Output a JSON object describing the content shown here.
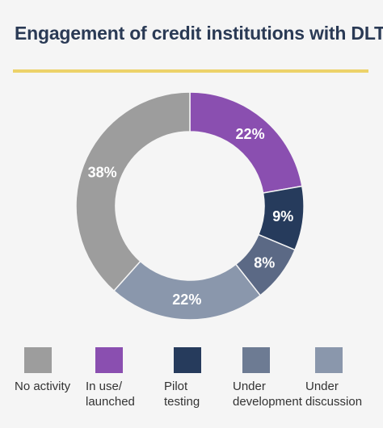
{
  "title": "Engagement of credit institutions with DLT",
  "colors": {
    "background": "#f5f5f5",
    "title": "#2a3a55",
    "rule": "#ecd26a",
    "label": "#ffffff"
  },
  "chart_data": {
    "type": "pie",
    "donut": true,
    "title": "Engagement of credit institutions with DLT",
    "slices": [
      {
        "label": "In use/ launched",
        "value": 22,
        "value_label": "22%",
        "color": "#8a4fb0"
      },
      {
        "label": "Pilot testing",
        "value": 9,
        "value_label": "9%",
        "color": "#263b5c"
      },
      {
        "label": "Under development",
        "value": 8,
        "value_label": "8%",
        "color": "#5b6985"
      },
      {
        "label": "Under discussion",
        "value": 22,
        "value_label": "22%",
        "color": "#8a97ac"
      },
      {
        "label": "No activity",
        "value": 38,
        "value_label": "38%",
        "color": "#9d9d9d"
      }
    ]
  },
  "legend": [
    {
      "line1": "No activity",
      "line2": "",
      "color": "#9d9d9d"
    },
    {
      "line1": "In use/",
      "line2": "launched",
      "color": "#8a4fb0"
    },
    {
      "line1": "Pilot",
      "line2": "testing",
      "color": "#263b5c"
    },
    {
      "line1": "Under",
      "line2": "development",
      "color": "#6d7b93"
    },
    {
      "line1": "Under",
      "line2": "discussion",
      "color": "#8a97ac"
    }
  ]
}
